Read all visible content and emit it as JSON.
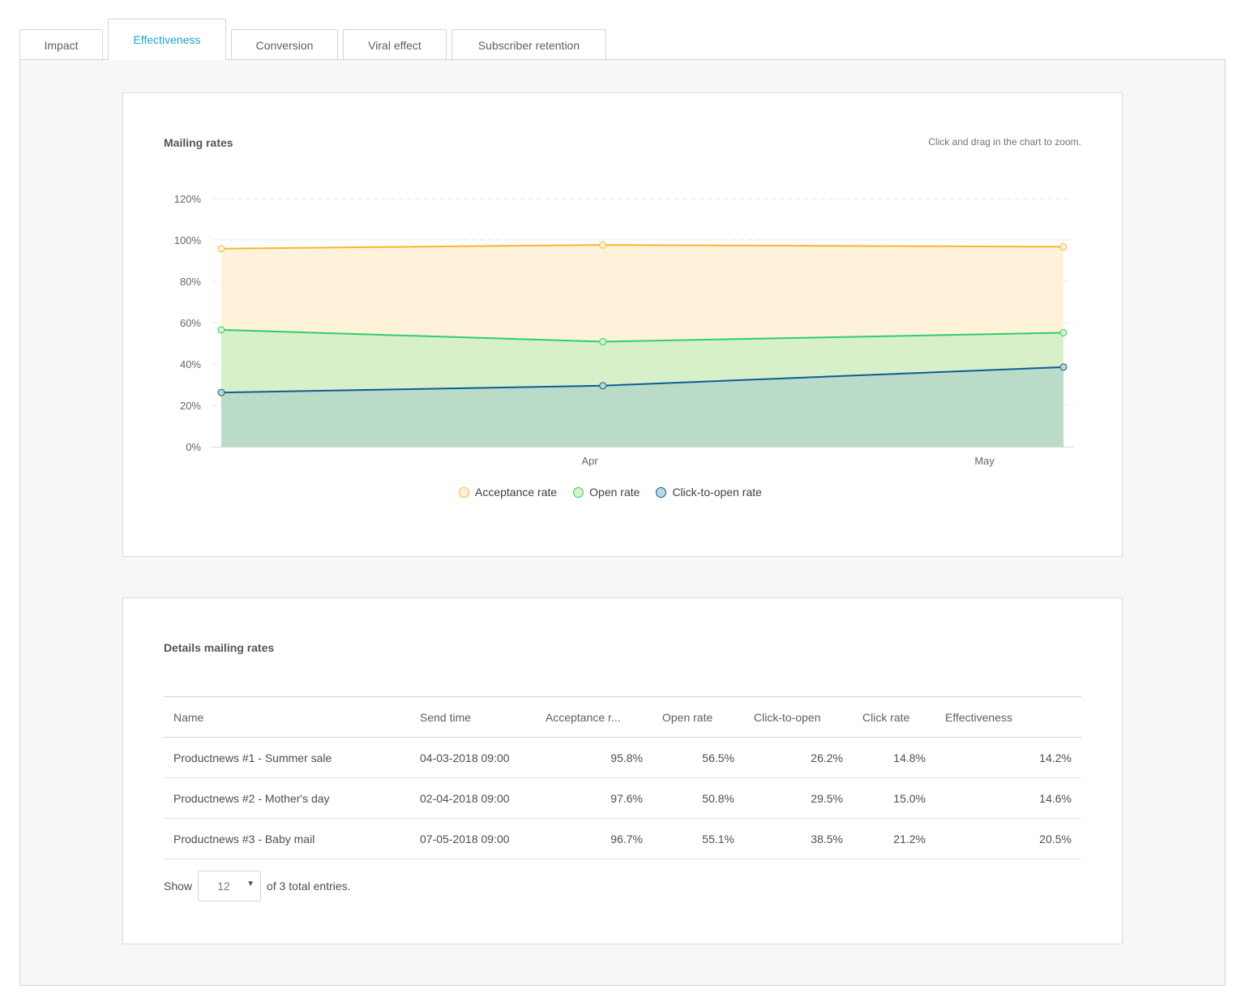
{
  "tabs": [
    {
      "label": "Impact"
    },
    {
      "label": "Effectiveness"
    },
    {
      "label": "Conversion"
    },
    {
      "label": "Viral effect"
    },
    {
      "label": "Subscriber retention"
    }
  ],
  "active_tab": "Effectiveness",
  "chart_card": {
    "title": "Mailing rates",
    "hint": "Click and drag in the chart to zoom."
  },
  "chart_data": {
    "type": "area",
    "title": "Mailing rates",
    "x_axis": {
      "type": "date",
      "tick_labels": [
        "Apr",
        "May"
      ],
      "ticks": [
        "2018-04-01",
        "2018-05-01"
      ],
      "range": [
        "2018-03-04",
        "2018-05-07"
      ]
    },
    "y_axis": {
      "tick_labels": [
        "0%",
        "20%",
        "40%",
        "60%",
        "80%",
        "100%",
        "120%"
      ],
      "ylim": [
        0,
        120
      ],
      "unit": "%"
    },
    "x": [
      "2018-03-04",
      "2018-04-02",
      "2018-05-07"
    ],
    "series": [
      {
        "name": "Acceptance rate",
        "values": [
          95.8,
          97.6,
          96.7
        ],
        "color": "#f5b82e",
        "fill": "#fef2da"
      },
      {
        "name": "Open rate",
        "values": [
          56.5,
          50.8,
          55.1
        ],
        "color": "#2ecf6b",
        "fill": "#d8f0ca"
      },
      {
        "name": "Click-to-open rate",
        "values": [
          26.2,
          29.5,
          38.5
        ],
        "color": "#0d5d97",
        "fill": "#b9dbc7"
      }
    ],
    "grid": true,
    "legend_position": "bottom-center"
  },
  "details_card": {
    "title": "Details mailing rates",
    "columns": [
      "Name",
      "Send time",
      "Acceptance r...",
      "Open rate",
      "Click-to-open",
      "Click rate",
      "Effectiveness"
    ],
    "rows": [
      [
        "Productnews #1 - Summer sale",
        "04-03-2018 09:00",
        "95.8%",
        "56.5%",
        "26.2%",
        "14.8%",
        "14.2%"
      ],
      [
        "Productnews #2 - Mother's day",
        "02-04-2018 09:00",
        "97.6%",
        "50.8%",
        "29.5%",
        "15.0%",
        "14.6%"
      ],
      [
        "Productnews #3 - Baby mail",
        "07-05-2018 09:00",
        "96.7%",
        "55.1%",
        "38.5%",
        "21.2%",
        "20.5%"
      ]
    ],
    "show_label": "Show",
    "page_size": "12",
    "entries_text": "of 3 total entries."
  }
}
